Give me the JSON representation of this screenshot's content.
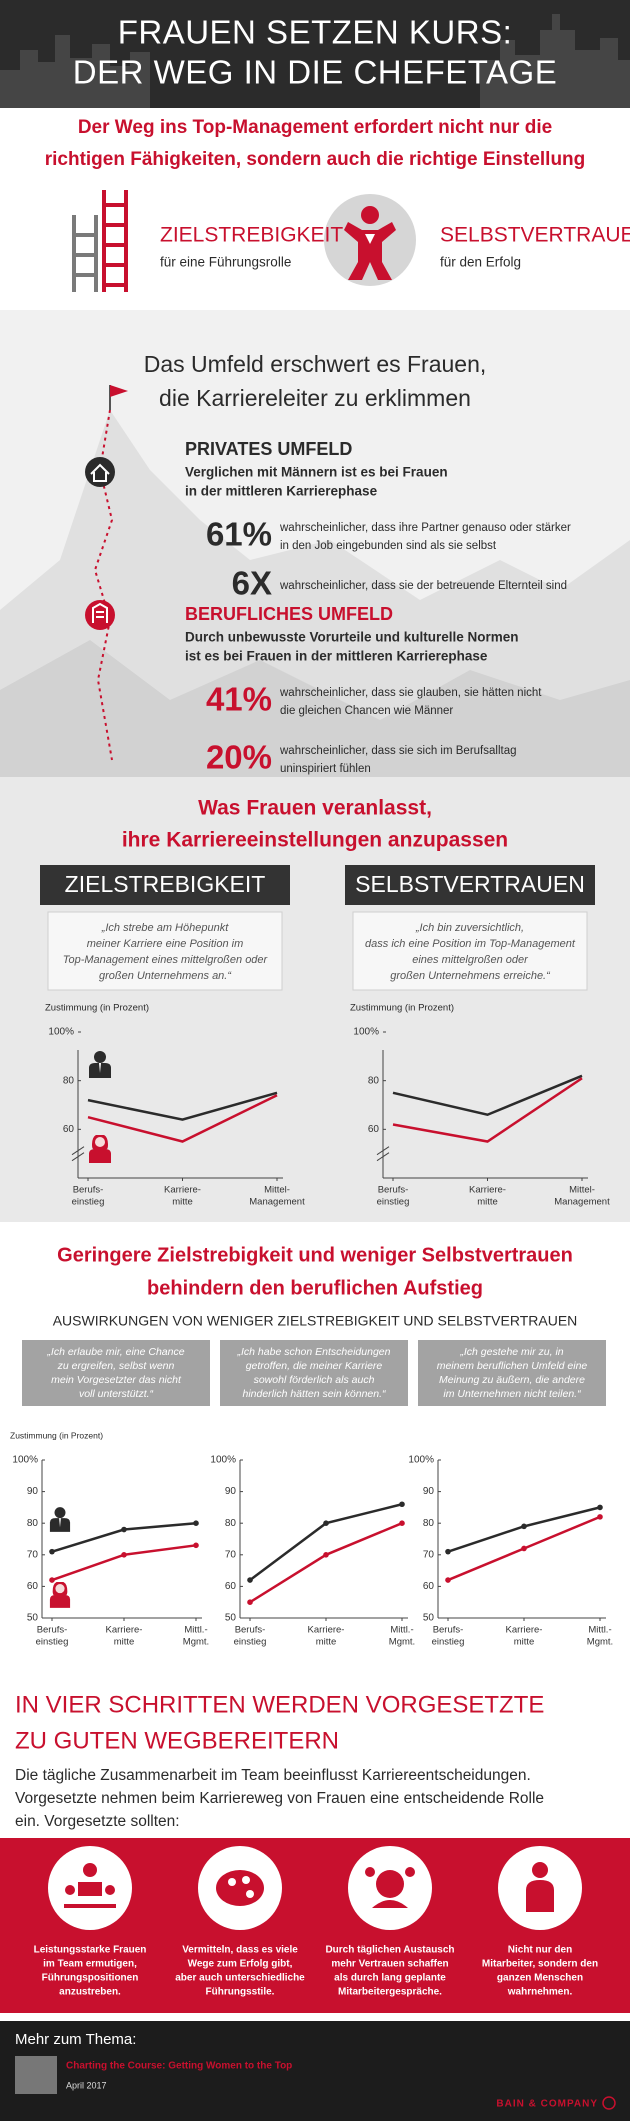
{
  "header": {
    "title": [
      "FRAUEN SETZEN KURS:",
      "DER WEG IN DIE CHEFETAGE"
    ]
  },
  "intro": {
    "headline": [
      "Der Weg ins Top-Management erfordert nicht nur die",
      "richtigen Fähigkeiten, sondern auch die richtige Einstellung"
    ]
  },
  "traits": [
    {
      "title": "ZIELSTREBIGKEIT",
      "subtitle": "für eine Führungsrolle"
    },
    {
      "title": "SELBSTVERTRAUEN",
      "subtitle": "für den Erfolg"
    }
  ],
  "environment": {
    "heading": [
      "Das Umfeld erschwert es Frauen,",
      "die Karriereleiter zu erklimmen"
    ],
    "private": {
      "title": "PRIVATES UMFELD",
      "description": [
        "Verglichen mit Männern ist es bei Frauen",
        "in der mittleren Karrierephase"
      ],
      "stats": [
        {
          "figure": "61%",
          "text": [
            "wahrscheinlicher, dass ihre Partner genauso oder stärker",
            "in den Job eingebunden sind als sie selbst"
          ]
        },
        {
          "figure": "6X",
          "text": [
            "wahrscheinlicher, dass sie der betreuende Elternteil sind"
          ]
        }
      ]
    },
    "professional": {
      "title": "BERUFLICHES UMFELD",
      "description": [
        "Durch unbewusste Vorurteile und kulturelle Normen",
        "ist es bei Frauen in der mittleren Karrierephase"
      ],
      "stats": [
        {
          "figure": "41%",
          "text": [
            "wahrscheinlicher, dass sie glauben, sie hätten nicht",
            "die gleichen Chancen wie Männer"
          ]
        },
        {
          "figure": "20%",
          "text": [
            "wahrscheinlicher, dass sie sich im Berufsalltag",
            "uninspiriert fühlen"
          ]
        }
      ]
    }
  },
  "attitude": {
    "title": [
      "Was Frauen veranlasst,",
      "ihre Karriereeinstellungen anzupassen"
    ],
    "panels": [
      {
        "label": "ZIELSTREBIGKEIT",
        "quote": [
          "„Ich strebe am Höhepunkt",
          "meiner Karriere eine Position im",
          "Top-Management eines mittelgroßen oder",
          "großen Unternehmens an.“"
        ],
        "chart": {
          "type": "line",
          "axis_label": "Zustimmung (in Prozent)",
          "categories": [
            [
              "Berufs-",
              "einstieg"
            ],
            [
              "Karriere-",
              "mitte"
            ],
            [
              "Mittel-",
              "Management"
            ]
          ],
          "series": [
            {
              "color": "#2b2b2b",
              "values": [
                72,
                64,
                75
              ]
            },
            {
              "color": "#c8102e",
              "values": [
                65,
                55,
                74
              ]
            }
          ],
          "ylim": [
            40,
            100
          ],
          "yticks": [
            {
              "value": 100,
              "label": "100%"
            },
            80,
            60
          ]
        }
      },
      {
        "label": "SELBSTVERTRAUEN",
        "quote": [
          "„Ich bin zuversichtlich,",
          "dass ich eine Position im Top-Management",
          "eines mittelgroßen oder",
          "großen Unternehmens erreiche.“"
        ],
        "chart": {
          "type": "line",
          "axis_label": "Zustimmung (in Prozent)",
          "categories": [
            [
              "Berufs-",
              "einstieg"
            ],
            [
              "Karriere-",
              "mitte"
            ],
            [
              "Mittel-",
              "Management"
            ]
          ],
          "series": [
            {
              "color": "#2b2b2b",
              "values": [
                75,
                66,
                82
              ]
            },
            {
              "color": "#c8102e",
              "values": [
                62,
                55,
                81
              ]
            }
          ],
          "ylim": [
            40,
            100
          ],
          "yticks": [
            {
              "value": 100,
              "label": "100%"
            },
            80,
            60
          ]
        }
      }
    ]
  },
  "impact": {
    "title": [
      "Geringere Zielstrebigkeit und weniger Selbstvertrauen",
      "behindern den beruflichen Aufstieg"
    ],
    "subtitle": "AUSWIRKUNGEN VON WENIGER ZIELSTREBIGKEIT UND SELBSTVERTRAUEN",
    "quotes": [
      [
        "„Ich erlaube mir, eine Chance",
        "zu ergreifen, selbst wenn",
        "mein Vorgesetzter das nicht",
        "voll unterstützt.“"
      ],
      [
        "„Ich habe schon Entscheidungen",
        "getroffen, die meiner Karriere",
        "sowohl förderlich als auch",
        "hinderlich hätten sein können.“"
      ],
      [
        "„Ich gestehe mir zu, in",
        "meinem beruflichen Umfeld eine",
        "Meinung zu äußern, die andere",
        "im Unternehmen nicht teilen.“"
      ]
    ],
    "axis_label": "Zustimmung (in Prozent)",
    "charts": [
      {
        "type": "line",
        "markers": true,
        "categories": [
          [
            "Berufs-",
            "einstieg"
          ],
          [
            "Karriere-",
            "mitte"
          ],
          [
            "Mittl.-",
            "Mgmt."
          ]
        ],
        "series": [
          {
            "color": "#2b2b2b",
            "values": [
              71,
              78,
              80
            ]
          },
          {
            "color": "#c8102e",
            "values": [
              62,
              70,
              73
            ]
          }
        ],
        "ylim": [
          50,
          100
        ],
        "yticks": [
          {
            "value": 100,
            "label": "100%"
          },
          90,
          80,
          70,
          60,
          50
        ]
      },
      {
        "type": "line",
        "markers": true,
        "categories": [
          [
            "Berufs-",
            "einstieg"
          ],
          [
            "Karriere-",
            "mitte"
          ],
          [
            "Mittl.-",
            "Mgmt."
          ]
        ],
        "series": [
          {
            "color": "#2b2b2b",
            "values": [
              62,
              80,
              86
            ]
          },
          {
            "color": "#c8102e",
            "values": [
              55,
              70,
              80
            ]
          }
        ],
        "ylim": [
          50,
          100
        ],
        "yticks": [
          {
            "value": 100,
            "label": "100%"
          },
          90,
          80,
          70,
          60,
          50
        ]
      },
      {
        "type": "line",
        "markers": true,
        "categories": [
          [
            "Berufs-",
            "einstieg"
          ],
          [
            "Karriere-",
            "mitte"
          ],
          [
            "Mittl.-",
            "Mgmt."
          ]
        ],
        "series": [
          {
            "color": "#2b2b2b",
            "values": [
              71,
              79,
              85
            ]
          },
          {
            "color": "#c8102e",
            "values": [
              62,
              72,
              82
            ]
          }
        ],
        "ylim": [
          50,
          100
        ],
        "yticks": [
          {
            "value": 100,
            "label": "100%"
          },
          90,
          80,
          70,
          60,
          50
        ]
      }
    ]
  },
  "steps": {
    "title": [
      "IN VIER SCHRITTEN WERDEN VORGESETZTE",
      "ZU GUTEN WEGBEREITERN"
    ],
    "intro": [
      "Die tägliche Zusammenarbeit im Team beeinflusst Karriereentscheidungen.",
      "Vorgesetzte nehmen beim Karriereweg von Frauen eine entscheidende Rolle",
      "ein. Vorgesetzte sollten:"
    ],
    "items": [
      [
        "Leistungsstarke Frauen",
        "im Team ermutigen,",
        "Führungspositionen",
        "anzustreben."
      ],
      [
        "Vermitteln, dass es viele",
        "Wege zum Erfolg gibt,",
        "aber auch unterschiedliche",
        "Führungsstile."
      ],
      [
        "Durch täglichen Austausch",
        "mehr Vertrauen schaffen",
        "als durch lang geplante",
        "Mitarbeitergespräche."
      ],
      [
        "Nicht nur den",
        "Mitarbeiter, sondern den",
        "ganzen Menschen",
        "wahrnehmen."
      ]
    ]
  },
  "footer": {
    "label": "Mehr zum Thema:",
    "link": "Charting the Course: Getting Women to the Top",
    "date": "April 2017",
    "brand": "BAIN & COMPANY"
  }
}
